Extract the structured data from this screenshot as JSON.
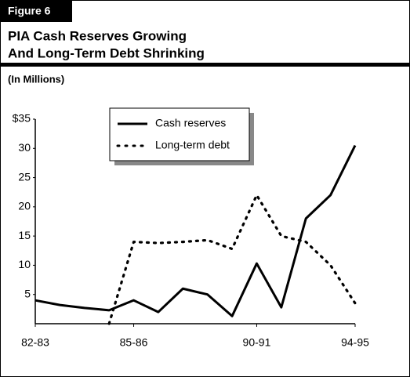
{
  "figure_label": "Figure 6",
  "chart_data": {
    "type": "line",
    "title": [
      "PIA Cash Reserves Growing",
      "And Long-Term Debt Shrinking"
    ],
    "y_axis_label": "(In Millions)",
    "categories": [
      "82-83",
      null,
      null,
      null,
      "85-86",
      null,
      null,
      null,
      null,
      "90-91",
      null,
      null,
      null,
      "94-95"
    ],
    "series": [
      {
        "name": "Cash reserves",
        "color": "#000000",
        "style": "solid",
        "values": [
          4,
          3.2,
          2.7,
          2.3,
          4,
          2,
          6,
          5,
          1.3,
          10.3,
          2.8,
          18,
          22,
          30.5
        ]
      },
      {
        "name": "Long-term debt",
        "color": "#000000",
        "style": "dotted",
        "values": [
          null,
          null,
          null,
          0,
          14,
          13.8,
          14,
          14.3,
          12.8,
          22,
          15,
          14,
          10,
          3.5
        ]
      }
    ],
    "ylim": [
      0,
      35
    ],
    "yticks": [
      5,
      10,
      15,
      20,
      25,
      30,
      {
        "value": 35,
        "label": "$35"
      }
    ],
    "grid": false
  }
}
